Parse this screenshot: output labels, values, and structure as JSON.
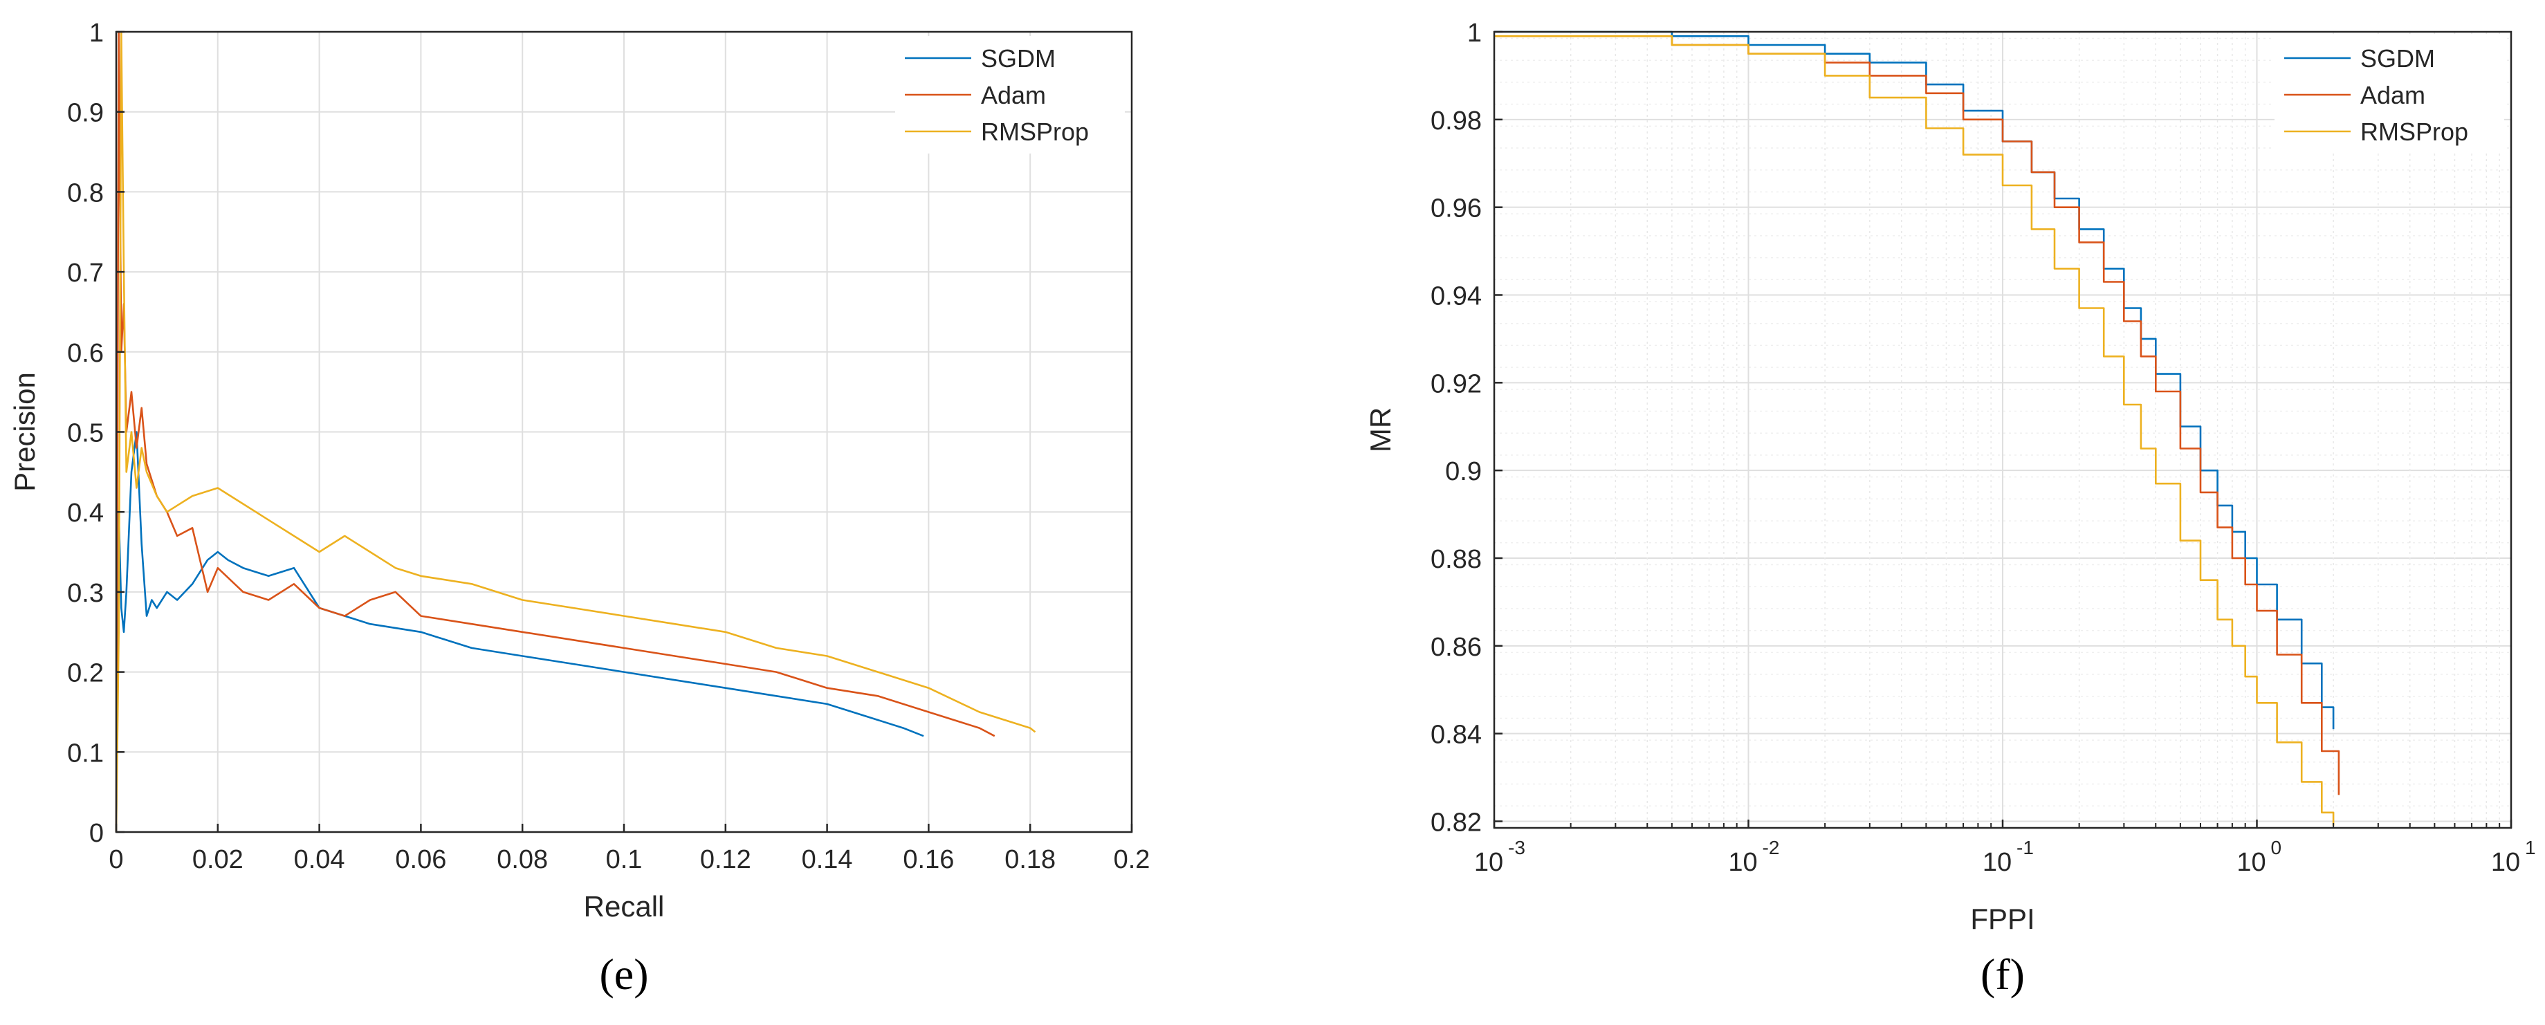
{
  "colors": {
    "sgdm": "#0072bd",
    "adam": "#d95319",
    "rmsprop": "#edb120",
    "grid": "#dfdfdf",
    "axis": "#262626"
  },
  "chart_data": [
    {
      "type": "line",
      "caption": "(e)",
      "title": "",
      "xlabel": "Recall",
      "ylabel": "Precision",
      "xlim": [
        0,
        0.2
      ],
      "ylim": [
        0,
        1
      ],
      "xscale": "linear",
      "grid": true,
      "legend_position": "top-right",
      "xtick_labels": [
        "0",
        "0.02",
        "0.04",
        "0.06",
        "0.08",
        "0.1",
        "0.12",
        "0.14",
        "0.16",
        "0.18",
        "0.2"
      ],
      "ytick_labels": [
        "0",
        "0.1",
        "0.2",
        "0.3",
        "0.4",
        "0.5",
        "0.6",
        "0.7",
        "0.8",
        "0.9",
        "1"
      ],
      "series": [
        {
          "name": "SGDM",
          "color_key": "sgdm",
          "x": [
            0,
            0.0005,
            0.001,
            0.0015,
            0.002,
            0.003,
            0.004,
            0.005,
            0.006,
            0.007,
            0.008,
            0.01,
            0.012,
            0.015,
            0.018,
            0.02,
            0.022,
            0.025,
            0.03,
            0.035,
            0.04,
            0.045,
            0.05,
            0.06,
            0.07,
            0.08,
            0.09,
            0.1,
            0.11,
            0.12,
            0.13,
            0.14,
            0.15,
            0.155,
            0.159
          ],
          "y": [
            0,
            0.4,
            0.28,
            0.25,
            0.3,
            0.45,
            0.5,
            0.36,
            0.27,
            0.29,
            0.28,
            0.3,
            0.29,
            0.31,
            0.34,
            0.35,
            0.34,
            0.33,
            0.32,
            0.33,
            0.28,
            0.27,
            0.26,
            0.25,
            0.23,
            0.22,
            0.21,
            0.2,
            0.19,
            0.18,
            0.17,
            0.16,
            0.14,
            0.13,
            0.12
          ]
        },
        {
          "name": "Adam",
          "color_key": "adam",
          "x": [
            0,
            0.0005,
            0.001,
            0.0015,
            0.002,
            0.003,
            0.004,
            0.005,
            0.006,
            0.008,
            0.01,
            0.012,
            0.015,
            0.018,
            0.02,
            0.025,
            0.03,
            0.035,
            0.04,
            0.045,
            0.05,
            0.055,
            0.06,
            0.07,
            0.08,
            0.09,
            0.1,
            0.11,
            0.12,
            0.13,
            0.14,
            0.15,
            0.16,
            0.17,
            0.173
          ],
          "y": [
            0,
            1.0,
            0.6,
            0.66,
            0.5,
            0.55,
            0.48,
            0.53,
            0.46,
            0.42,
            0.4,
            0.37,
            0.38,
            0.3,
            0.33,
            0.3,
            0.29,
            0.31,
            0.28,
            0.27,
            0.29,
            0.3,
            0.27,
            0.26,
            0.25,
            0.24,
            0.23,
            0.22,
            0.21,
            0.2,
            0.18,
            0.17,
            0.15,
            0.13,
            0.12
          ]
        },
        {
          "name": "RMSProp",
          "color_key": "rmsprop",
          "x": [
            0,
            0.0005,
            0.001,
            0.0015,
            0.002,
            0.003,
            0.004,
            0.005,
            0.006,
            0.008,
            0.01,
            0.015,
            0.02,
            0.025,
            0.03,
            0.035,
            0.04,
            0.045,
            0.05,
            0.055,
            0.06,
            0.07,
            0.08,
            0.09,
            0.1,
            0.11,
            0.12,
            0.13,
            0.14,
            0.15,
            0.16,
            0.17,
            0.18,
            0.181
          ],
          "y": [
            0,
            0.25,
            1.0,
            0.7,
            0.45,
            0.5,
            0.43,
            0.48,
            0.45,
            0.42,
            0.4,
            0.42,
            0.43,
            0.41,
            0.39,
            0.37,
            0.35,
            0.37,
            0.35,
            0.33,
            0.32,
            0.31,
            0.29,
            0.28,
            0.27,
            0.26,
            0.25,
            0.23,
            0.22,
            0.2,
            0.18,
            0.15,
            0.13,
            0.125
          ]
        }
      ]
    },
    {
      "type": "line",
      "caption": "(f)",
      "title": "",
      "xlabel": "FPPI",
      "ylabel": "MR",
      "xlim": [
        0.001,
        10
      ],
      "ylim": [
        0.8185,
        1.0
      ],
      "xscale": "log",
      "grid": true,
      "legend_position": "top-right",
      "xtick_labels": [
        "10",
        "10",
        "10",
        "10",
        "10"
      ],
      "xtick_exponents": [
        "-3",
        "-2",
        "-1",
        "0",
        "1"
      ],
      "ytick_labels": [
        "0.82",
        "0.84",
        "0.86",
        "0.88",
        "0.9",
        "0.92",
        "0.94",
        "0.96",
        "0.98",
        "1"
      ],
      "series": [
        {
          "name": "SGDM",
          "color_key": "sgdm",
          "x": [
            0.001,
            0.005,
            0.01,
            0.02,
            0.03,
            0.05,
            0.07,
            0.1,
            0.13,
            0.16,
            0.2,
            0.25,
            0.3,
            0.35,
            0.4,
            0.5,
            0.6,
            0.7,
            0.8,
            0.9,
            1.0,
            1.2,
            1.5,
            1.8,
            2.0
          ],
          "y": [
            1.0,
            0.999,
            0.997,
            0.995,
            0.993,
            0.988,
            0.982,
            0.975,
            0.968,
            0.962,
            0.955,
            0.946,
            0.937,
            0.93,
            0.922,
            0.91,
            0.9,
            0.892,
            0.886,
            0.88,
            0.874,
            0.866,
            0.856,
            0.846,
            0.841
          ]
        },
        {
          "name": "Adam",
          "color_key": "adam",
          "x": [
            0.001,
            0.005,
            0.01,
            0.02,
            0.03,
            0.05,
            0.07,
            0.1,
            0.13,
            0.16,
            0.2,
            0.25,
            0.3,
            0.35,
            0.4,
            0.5,
            0.6,
            0.7,
            0.8,
            0.9,
            1.0,
            1.2,
            1.5,
            1.8,
            2.1
          ],
          "y": [
            0.999,
            0.997,
            0.995,
            0.993,
            0.99,
            0.986,
            0.98,
            0.975,
            0.968,
            0.96,
            0.952,
            0.943,
            0.934,
            0.926,
            0.918,
            0.905,
            0.895,
            0.887,
            0.88,
            0.874,
            0.868,
            0.858,
            0.847,
            0.836,
            0.826
          ]
        },
        {
          "name": "RMSProp",
          "color_key": "rmsprop",
          "x": [
            0.001,
            0.005,
            0.01,
            0.02,
            0.03,
            0.05,
            0.07,
            0.1,
            0.13,
            0.16,
            0.2,
            0.25,
            0.3,
            0.35,
            0.4,
            0.5,
            0.6,
            0.7,
            0.8,
            0.9,
            1.0,
            1.2,
            1.5,
            1.8,
            2.0
          ],
          "y": [
            0.999,
            0.997,
            0.995,
            0.99,
            0.985,
            0.978,
            0.972,
            0.965,
            0.955,
            0.946,
            0.937,
            0.926,
            0.915,
            0.905,
            0.897,
            0.884,
            0.875,
            0.866,
            0.86,
            0.853,
            0.847,
            0.838,
            0.829,
            0.822,
            0.819
          ]
        }
      ]
    }
  ]
}
